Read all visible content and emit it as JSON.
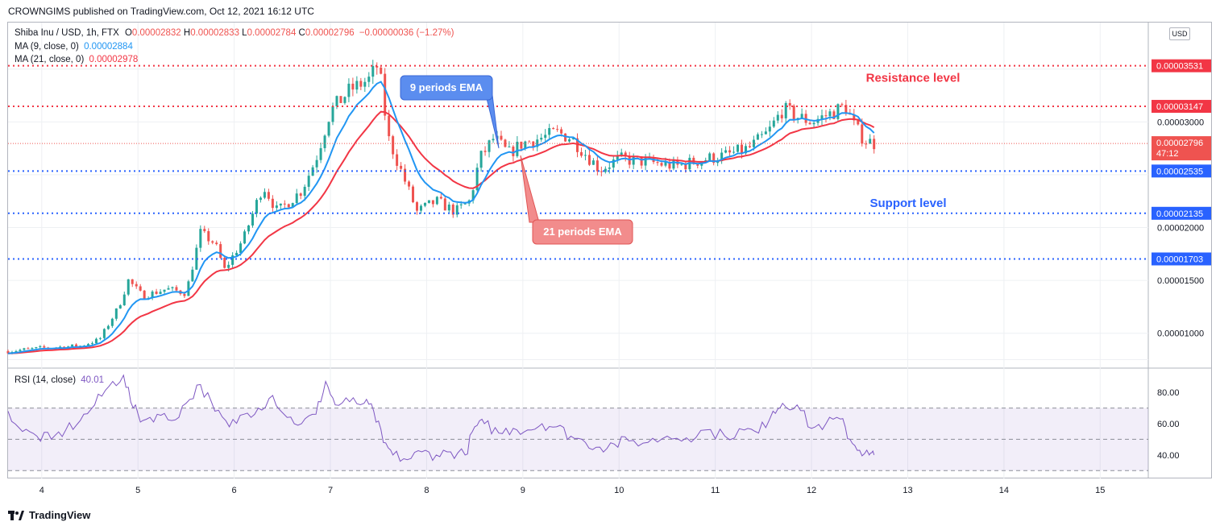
{
  "header": {
    "publish_text": "CROWNGIMS published on TradingView.com, Oct 12, 2021 16:12 UTC"
  },
  "legend": {
    "symbol": "Shiba Inu / USD, 1h, FTX",
    "o_label": "O",
    "o_value": "0.00002832",
    "h_label": "H",
    "h_value": "0.00002833",
    "l_label": "L",
    "l_value": "0.00002784",
    "c_label": "C",
    "c_value": "0.00002796",
    "change": "−0.00000036 (−1.27%)",
    "ma9_label": "MA (9, close, 0)",
    "ma9_value": "0.00002884",
    "ma21_label": "MA (21, close, 0)",
    "ma21_value": "0.00002978"
  },
  "rsi_legend": {
    "label": "RSI (14, close)",
    "value": "40.01"
  },
  "currency_button": "USD",
  "annotations": {
    "resistance": "Resistance level",
    "support": "Support level",
    "ema9": "9 periods EMA",
    "ema21": "21 periods EMA"
  },
  "price_tags": {
    "r1": "0.00003531",
    "r2": "0.00003147",
    "current": "0.00002796",
    "countdown": "47:12",
    "s1": "0.00002535",
    "s2": "0.00002135",
    "s3": "0.00001703"
  },
  "footer": {
    "brand": "TradingView"
  },
  "colors": {
    "up": "#26a69a",
    "down": "#ef5350",
    "ema9": "#2196f3",
    "ema21": "#f23645",
    "support": "#2962ff",
    "resistance": "#f23645",
    "rsi": "#7e57c2"
  },
  "chart_data": [
    {
      "type": "candlestick",
      "title": "Shiba Inu / USD, 1h, FTX",
      "x_tick_labels": [
        "4",
        "5",
        "6",
        "7",
        "8",
        "9",
        "10",
        "11",
        "12",
        "13",
        "14",
        "15"
      ],
      "x_ticks": [
        4,
        5,
        6,
        7,
        8,
        9,
        10,
        11,
        12,
        13,
        14,
        15
      ],
      "xlim": [
        3.65,
        15.5
      ],
      "y_tick_labels": [
        "0.00003000",
        "0.00002000",
        "0.00001500",
        "0.00001000"
      ],
      "y_ticks": [
        3e-05,
        2e-05,
        1.5e-05,
        1e-05
      ],
      "ylim": [
        6.7e-06,
        3.94e-05
      ],
      "horizontal_levels": [
        {
          "name": "Resistance level",
          "value": 3.531e-05
        },
        {
          "name": "Resistance level",
          "value": 3.147e-05
        },
        {
          "name": "Support level",
          "value": 2.535e-05
        },
        {
          "name": "Support level",
          "value": 2.135e-05
        },
        {
          "name": "Support level",
          "value": 1.703e-05
        }
      ],
      "close_path": [
        [
          3.65,
          8.3e-06
        ],
        [
          4.0,
          8.6e-06
        ],
        [
          4.4,
          8.8e-06
        ],
        [
          4.6,
          9.4e-06
        ],
        [
          4.8,
          1.25e-05
        ],
        [
          4.9,
          1.5e-05
        ],
        [
          5.05,
          1.35e-05
        ],
        [
          5.3,
          1.42e-05
        ],
        [
          5.5,
          1.38e-05
        ],
        [
          5.65,
          1.95e-05
        ],
        [
          5.8,
          1.85e-05
        ],
        [
          5.9,
          1.6e-05
        ],
        [
          6.1,
          1.9e-05
        ],
        [
          6.3,
          2.4e-05
        ],
        [
          6.45,
          2.15e-05
        ],
        [
          6.7,
          2.35e-05
        ],
        [
          6.85,
          2.65e-05
        ],
        [
          7.0,
          3.1e-05
        ],
        [
          7.2,
          3.3e-05
        ],
        [
          7.4,
          3.4e-05
        ],
        [
          7.5,
          3.55e-05
        ],
        [
          7.6,
          2.85e-05
        ],
        [
          7.75,
          2.5e-05
        ],
        [
          7.9,
          2.15e-05
        ],
        [
          8.1,
          2.25e-05
        ],
        [
          8.3,
          2.15e-05
        ],
        [
          8.45,
          2.25e-05
        ],
        [
          8.55,
          2.65e-05
        ],
        [
          8.7,
          2.85e-05
        ],
        [
          8.85,
          2.7e-05
        ],
        [
          9.0,
          2.8e-05
        ],
        [
          9.2,
          2.85e-05
        ],
        [
          9.35,
          2.9e-05
        ],
        [
          9.5,
          2.85e-05
        ],
        [
          9.65,
          2.7e-05
        ],
        [
          9.8,
          2.55e-05
        ],
        [
          10.0,
          2.65e-05
        ],
        [
          10.3,
          2.62e-05
        ],
        [
          10.6,
          2.58e-05
        ],
        [
          10.9,
          2.65e-05
        ],
        [
          11.1,
          2.68e-05
        ],
        [
          11.35,
          2.75e-05
        ],
        [
          11.55,
          2.9e-05
        ],
        [
          11.7,
          3.12e-05
        ],
        [
          11.85,
          3.05e-05
        ],
        [
          12.0,
          3e-05
        ],
        [
          12.2,
          3.08e-05
        ],
        [
          12.35,
          3.15e-05
        ],
        [
          12.45,
          2.95e-05
        ],
        [
          12.55,
          2.83e-05
        ],
        [
          12.65,
          2.796e-05
        ]
      ],
      "series": [
        {
          "name": "MA (9, close, 0)",
          "last_value": 2.884e-05
        },
        {
          "name": "MA (21, close, 0)",
          "last_value": 2.978e-05
        }
      ]
    },
    {
      "type": "line",
      "title": "RSI (14, close)",
      "y_tick_labels": [
        "80.00",
        "60.00",
        "40.00"
      ],
      "y_ticks": [
        80,
        60,
        40
      ],
      "ylim": [
        25,
        95
      ],
      "band": [
        30,
        70
      ],
      "midline": 50,
      "x": [
        3.65,
        3.8,
        3.95,
        4.1,
        4.25,
        4.4,
        4.55,
        4.7,
        4.85,
        4.95,
        5.05,
        5.2,
        5.35,
        5.5,
        5.65,
        5.8,
        5.95,
        6.1,
        6.25,
        6.4,
        6.55,
        6.7,
        6.85,
        6.95,
        7.05,
        7.2,
        7.35,
        7.45,
        7.55,
        7.65,
        7.8,
        7.95,
        8.1,
        8.25,
        8.4,
        8.5,
        8.6,
        8.75,
        8.9,
        9.05,
        9.2,
        9.35,
        9.5,
        9.65,
        9.8,
        9.95,
        10.1,
        10.3,
        10.5,
        10.7,
        10.9,
        11.1,
        11.3,
        11.45,
        11.6,
        11.7,
        11.85,
        12.0,
        12.15,
        12.3,
        12.4,
        12.5,
        12.6,
        12.65
      ],
      "values": [
        68,
        55,
        52,
        50,
        56,
        62,
        72,
        84,
        91,
        70,
        62,
        66,
        62,
        73,
        85,
        68,
        58,
        66,
        70,
        78,
        64,
        60,
        66,
        87,
        72,
        74,
        73,
        68,
        48,
        40,
        37,
        42,
        40,
        42,
        40,
        58,
        60,
        54,
        57,
        56,
        60,
        58,
        52,
        48,
        45,
        47,
        49,
        48,
        52,
        51,
        56,
        52,
        56,
        54,
        68,
        73,
        72,
        57,
        60,
        63,
        50,
        43,
        40,
        40.01
      ]
    }
  ]
}
